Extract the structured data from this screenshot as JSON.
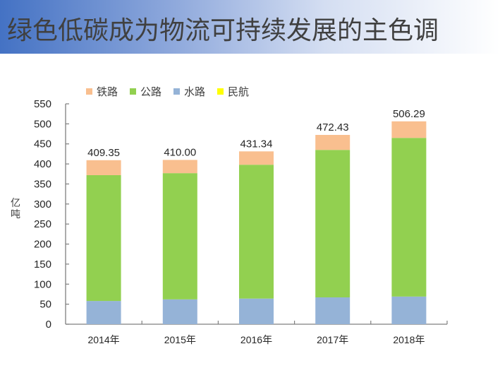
{
  "header": {
    "title": "绿色低碳成为物流可持续发展的主色调"
  },
  "legend": {
    "items": [
      {
        "label": "铁路",
        "color": "#f9bf8f"
      },
      {
        "label": "公路",
        "color": "#92d050"
      },
      {
        "label": "水路",
        "color": "#95b3d7"
      },
      {
        "label": "民航",
        "color": "#ffff00"
      }
    ]
  },
  "axis": {
    "ylabel_line1": "亿",
    "ylabel_line2": "吨",
    "yticks": [
      "0",
      "50",
      "100",
      "150",
      "200",
      "250",
      "300",
      "350",
      "400",
      "450",
      "500",
      "550"
    ]
  },
  "chart_data": {
    "type": "bar",
    "stacked": true,
    "title": "绿色低碳成为物流可持续发展的主色调",
    "xlabel": "",
    "ylabel": "亿吨",
    "ylim": [
      0,
      550
    ],
    "ytick_step": 50,
    "grid": false,
    "legend_position": "top",
    "categories": [
      "2014年",
      "2015年",
      "2016年",
      "2017年",
      "2018年"
    ],
    "series": [
      {
        "name": "水路",
        "color": "#95b3d7",
        "values": [
          58,
          62,
          64,
          67,
          69
        ]
      },
      {
        "name": "公路",
        "color": "#92d050",
        "values": [
          314,
          315,
          334,
          368,
          396
        ]
      },
      {
        "name": "铁路",
        "color": "#f9bf8f",
        "values": [
          37.35,
          33.0,
          33.34,
          37.43,
          41.29
        ]
      },
      {
        "name": "民航",
        "color": "#ffff00",
        "values": [
          0,
          0,
          0,
          0,
          0
        ]
      }
    ],
    "totals": [
      409.35,
      410.0,
      431.34,
      472.43,
      506.29
    ],
    "total_labels": [
      "409.35",
      "410.00",
      "431.34",
      "472.43",
      "506.29"
    ]
  }
}
